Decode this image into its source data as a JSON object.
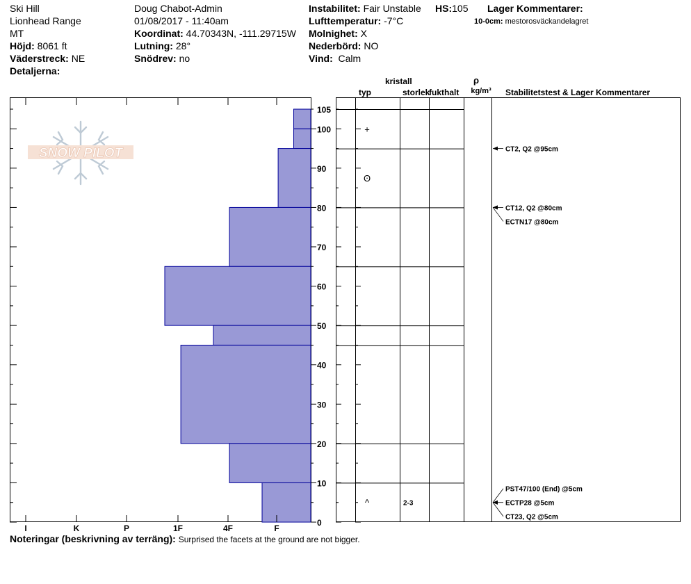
{
  "header": {
    "col1": [
      "Ski Hill",
      "Lionhead Range",
      "MT"
    ],
    "hojd_label": "Höjd:",
    "hojd_value": "8061 ft",
    "vaderstreck_label": "Väderstreck:",
    "vaderstreck_value": "NE",
    "detaljerna_label": "Detaljerna:",
    "observer": "Doug Chabot-Admin",
    "datetime": "01/08/2017 - 11:40am",
    "koordinat_label": "Koordinat:",
    "koordinat_value": "44.70343N, -111.29715W",
    "lutning_label": "Lutning:",
    "lutning_value": "28°",
    "snodrev_label": "Snödrev:",
    "snodrev_value": "no",
    "instabilitet_label": "Instabilitet:",
    "instabilitet_value": "Fair Unstable",
    "hs_label": "HS:",
    "hs_value": "105",
    "lufttemp_label": "Lufttemperatur:",
    "lufttemp_value": "-7°C",
    "molnighet_label": "Molnighet:",
    "molnighet_value": "X",
    "nederbord_label": "Nederbörd:",
    "nederbord_value": "NO",
    "vind_label": "Vind:",
    "vind_value": "Calm",
    "lager_title": "Lager Kommentarer:",
    "lager_depth": "10-0cm:",
    "lager_text": "mestorosväckandelagret"
  },
  "logo": {
    "text": "SNOW PILOT"
  },
  "columns": {
    "kristall": "kristall",
    "typ": "typ",
    "storlek": "storlek",
    "fukthalt": "fukthalt",
    "rho": "ρ",
    "density_unit": "kg/m³",
    "stability": "Stabilitetstest & Lager Kommentarer"
  },
  "footer": {
    "label": "Noteringar (beskrivning av terräng):",
    "text": "Surprised the facets at the ground are not bigger."
  },
  "colors": {
    "bar_fill": "#9999d6",
    "bar_stroke": "#000099"
  },
  "chart_data": {
    "type": "bar",
    "x_categories": [
      "I",
      "K",
      "P",
      "1F",
      "4F",
      "F"
    ],
    "y_ticks": [
      0,
      10,
      20,
      30,
      40,
      50,
      60,
      70,
      80,
      90,
      100,
      105
    ],
    "ylim": [
      0,
      105
    ],
    "hardness_profile": [
      {
        "bottom": 100,
        "top": 105,
        "hardness_index": 0.35
      },
      {
        "bottom": 95,
        "top": 100,
        "hardness_index": 0.35
      },
      {
        "bottom": 80,
        "top": 95,
        "hardness_index": 0.67
      },
      {
        "bottom": 65,
        "top": 80,
        "hardness_index": 1.67
      },
      {
        "bottom": 50,
        "top": 65,
        "hardness_index": 3.0
      },
      {
        "bottom": 45,
        "top": 50,
        "hardness_index": 2.0
      },
      {
        "bottom": 20,
        "top": 45,
        "hardness_index": 2.67
      },
      {
        "bottom": 10,
        "top": 20,
        "hardness_index": 1.67
      },
      {
        "bottom": 0,
        "top": 10,
        "hardness_index": 1.0
      }
    ],
    "layer_boundaries": [
      105,
      95,
      80,
      65,
      50,
      45,
      20,
      10
    ],
    "crystal_symbols": [
      {
        "depth": 100,
        "symbol": "+"
      },
      {
        "depth": 87.5,
        "symbol": "ʘ"
      },
      {
        "depth": 5,
        "symbol": "^",
        "size": "2-3"
      }
    ],
    "tests": [
      {
        "depth": 95,
        "label": "CT2, Q2 @95cm"
      },
      {
        "depth": 80,
        "label": "CT12, Q2 @80cm"
      },
      {
        "depth": 80,
        "label": "ECTN17 @80cm"
      },
      {
        "depth": 5,
        "label": "PST47/100 (End) @5cm"
      },
      {
        "depth": 5,
        "label": "ECTP28 @5cm"
      },
      {
        "depth": 5,
        "label": "CT23, Q2 @5cm"
      }
    ]
  }
}
